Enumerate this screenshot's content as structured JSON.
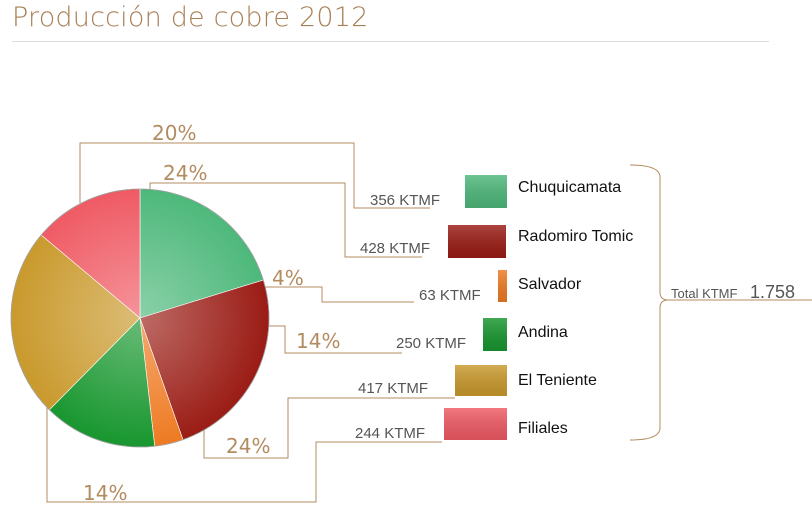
{
  "page": {
    "title": "Producción de cobre 2012"
  },
  "chart_data": {
    "type": "pie",
    "title": "Producción de cobre 2012",
    "unit": "KTMF",
    "total_label": "Total KTMF",
    "total_value": "1.758",
    "slices": [
      {
        "name": "Chuquicamata",
        "value": 356,
        "value_label": "356 KTMF",
        "percent_label": "20%",
        "color": "#4db87a"
      },
      {
        "name": "Radomiro Tomic",
        "value": 428,
        "value_label": "428 KTMF",
        "percent_label": "24%",
        "color": "#9a1b14"
      },
      {
        "name": "Salvador",
        "value": 63,
        "value_label": "63 KTMF",
        "percent_label": "4%",
        "color": "#ee7a22"
      },
      {
        "name": "Andina",
        "value": 250,
        "value_label": "250 KTMF",
        "percent_label": "14%",
        "color": "#17962e"
      },
      {
        "name": "El Teniente",
        "value": 417,
        "value_label": "417 KTMF",
        "percent_label": "24%",
        "color": "#c9992c"
      },
      {
        "name": "Filiales",
        "value": 244,
        "value_label": "244 KTMF",
        "percent_label": "14%",
        "color": "#ef5a64"
      }
    ]
  }
}
